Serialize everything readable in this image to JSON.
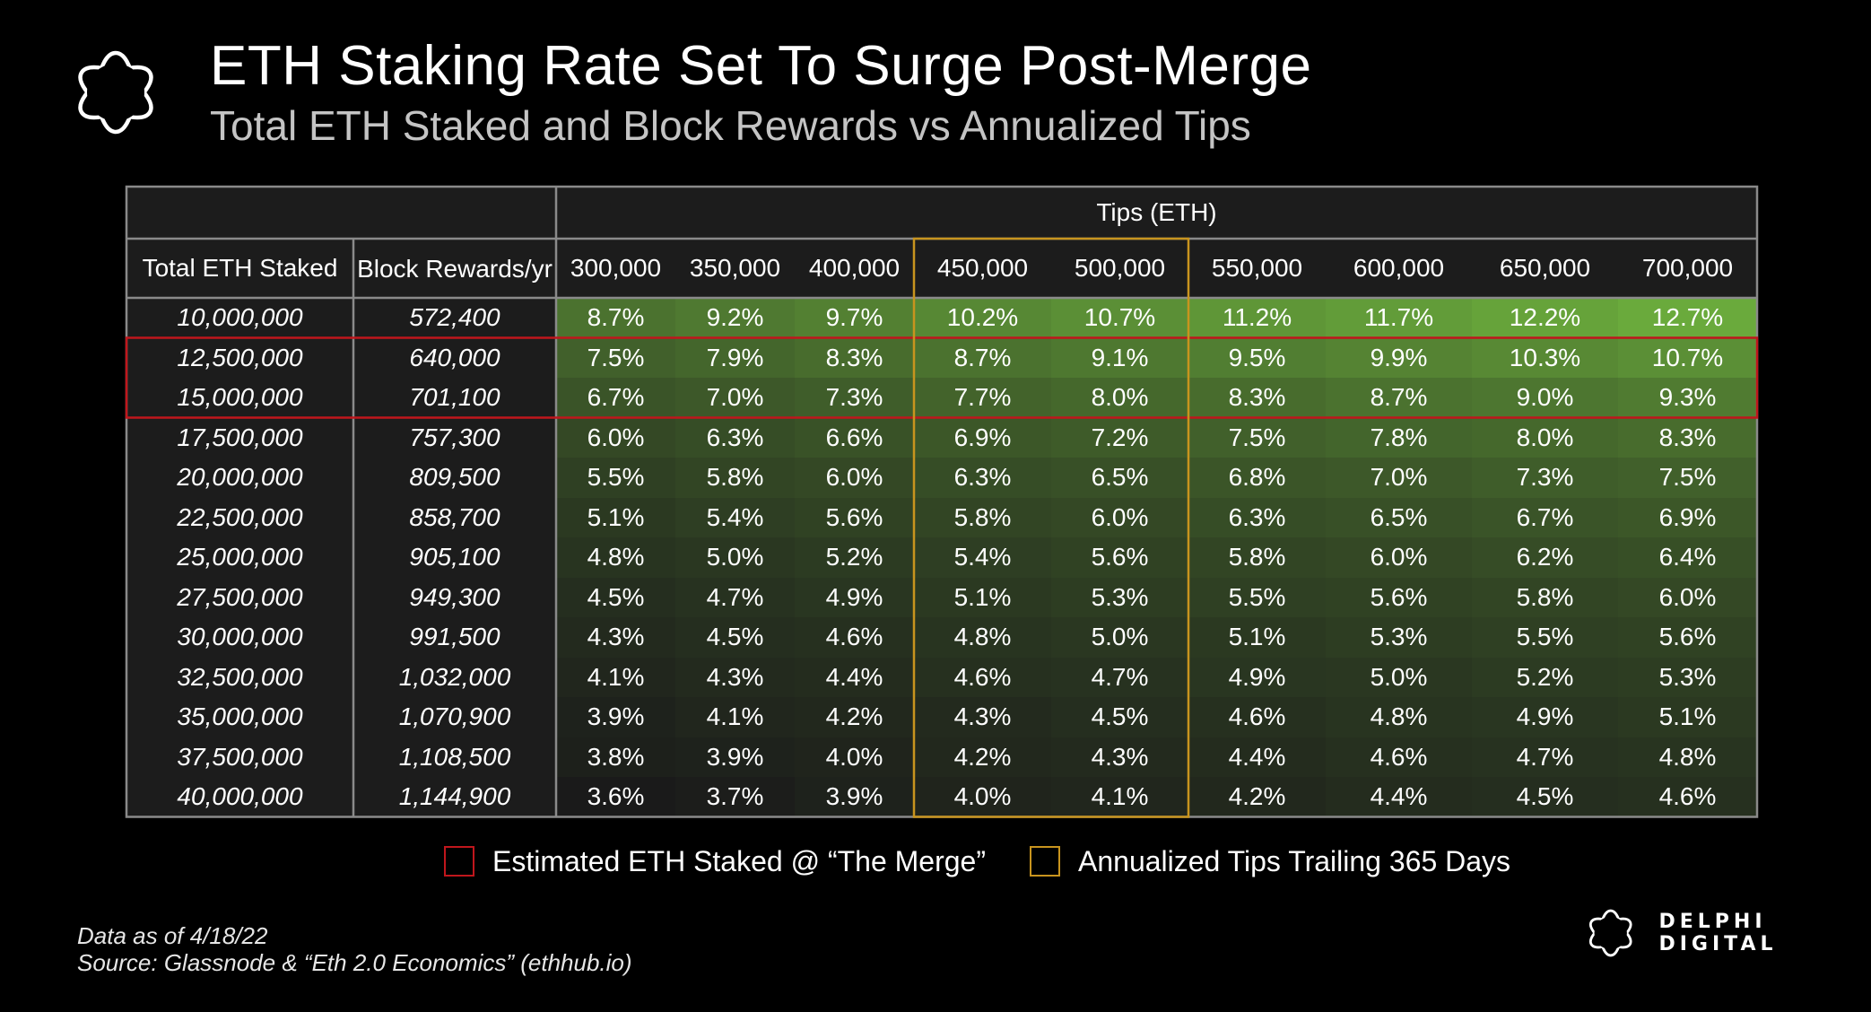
{
  "header": {
    "title": "ETH Staking Rate Set To Surge Post-Merge",
    "subtitle": "Total ETH Staked and Block Rewards vs Annualized Tips"
  },
  "chart_data": {
    "type": "heatmap",
    "title": "ETH Staking Rate Set To Surge Post-Merge",
    "subtitle": "Total ETH Staked and Block Rewards vs Annualized Tips",
    "column_group_label": "Tips (ETH)",
    "row_header_labels": [
      "Total ETH Staked",
      "Block Rewards/yr"
    ],
    "tips": [
      "300,000",
      "350,000",
      "400,000",
      "450,000",
      "500,000",
      "550,000",
      "600,000",
      "650,000",
      "700,000"
    ],
    "rows": [
      {
        "staked": "10,000,000",
        "rewards": "572,400",
        "values": [
          "8.7%",
          "9.2%",
          "9.7%",
          "10.2%",
          "10.7%",
          "11.2%",
          "11.7%",
          "12.2%",
          "12.7%"
        ]
      },
      {
        "staked": "12,500,000",
        "rewards": "640,000",
        "values": [
          "7.5%",
          "7.9%",
          "8.3%",
          "8.7%",
          "9.1%",
          "9.5%",
          "9.9%",
          "10.3%",
          "10.7%"
        ]
      },
      {
        "staked": "15,000,000",
        "rewards": "701,100",
        "values": [
          "6.7%",
          "7.0%",
          "7.3%",
          "7.7%",
          "8.0%",
          "8.3%",
          "8.7%",
          "9.0%",
          "9.3%"
        ]
      },
      {
        "staked": "17,500,000",
        "rewards": "757,300",
        "values": [
          "6.0%",
          "6.3%",
          "6.6%",
          "6.9%",
          "7.2%",
          "7.5%",
          "7.8%",
          "8.0%",
          "8.3%"
        ]
      },
      {
        "staked": "20,000,000",
        "rewards": "809,500",
        "values": [
          "5.5%",
          "5.8%",
          "6.0%",
          "6.3%",
          "6.5%",
          "6.8%",
          "7.0%",
          "7.3%",
          "7.5%"
        ]
      },
      {
        "staked": "22,500,000",
        "rewards": "858,700",
        "values": [
          "5.1%",
          "5.4%",
          "5.6%",
          "5.8%",
          "6.0%",
          "6.3%",
          "6.5%",
          "6.7%",
          "6.9%"
        ]
      },
      {
        "staked": "25,000,000",
        "rewards": "905,100",
        "values": [
          "4.8%",
          "5.0%",
          "5.2%",
          "5.4%",
          "5.6%",
          "5.8%",
          "6.0%",
          "6.2%",
          "6.4%"
        ]
      },
      {
        "staked": "27,500,000",
        "rewards": "949,300",
        "values": [
          "4.5%",
          "4.7%",
          "4.9%",
          "5.1%",
          "5.3%",
          "5.5%",
          "5.6%",
          "5.8%",
          "6.0%"
        ]
      },
      {
        "staked": "30,000,000",
        "rewards": "991,500",
        "values": [
          "4.3%",
          "4.5%",
          "4.6%",
          "4.8%",
          "5.0%",
          "5.1%",
          "5.3%",
          "5.5%",
          "5.6%"
        ]
      },
      {
        "staked": "32,500,000",
        "rewards": "1,032,000",
        "values": [
          "4.1%",
          "4.3%",
          "4.4%",
          "4.6%",
          "4.7%",
          "4.9%",
          "5.0%",
          "5.2%",
          "5.3%"
        ]
      },
      {
        "staked": "35,000,000",
        "rewards": "1,070,900",
        "values": [
          "3.9%",
          "4.1%",
          "4.2%",
          "4.3%",
          "4.5%",
          "4.6%",
          "4.8%",
          "4.9%",
          "5.1%"
        ]
      },
      {
        "staked": "37,500,000",
        "rewards": "1,108,500",
        "values": [
          "3.8%",
          "3.9%",
          "4.0%",
          "4.2%",
          "4.3%",
          "4.4%",
          "4.6%",
          "4.7%",
          "4.8%"
        ]
      },
      {
        "staked": "40,000,000",
        "rewards": "1,144,900",
        "values": [
          "3.6%",
          "3.7%",
          "3.9%",
          "4.0%",
          "4.1%",
          "4.2%",
          "4.4%",
          "4.5%",
          "4.6%"
        ]
      }
    ],
    "highlights": {
      "merge_rows": [
        1,
        2
      ],
      "tips_columns": [
        3,
        4
      ]
    },
    "color_scale": {
      "low": "#1a1a1a",
      "high": "#6aaa3c"
    },
    "legend": [
      {
        "label": "Estimated ETH Staked @ “The Merge”",
        "color": "#c0161c"
      },
      {
        "label": "Annualized Tips Trailing 365 Days",
        "color": "#c8941e"
      }
    ]
  },
  "footer": {
    "date_note": "Data as of 4/18/22",
    "source_note": "Source:  Glassnode & “Eth 2.0 Economics” (ethhub.io)"
  },
  "brand": {
    "name": "DELPHI DIGITAL"
  }
}
